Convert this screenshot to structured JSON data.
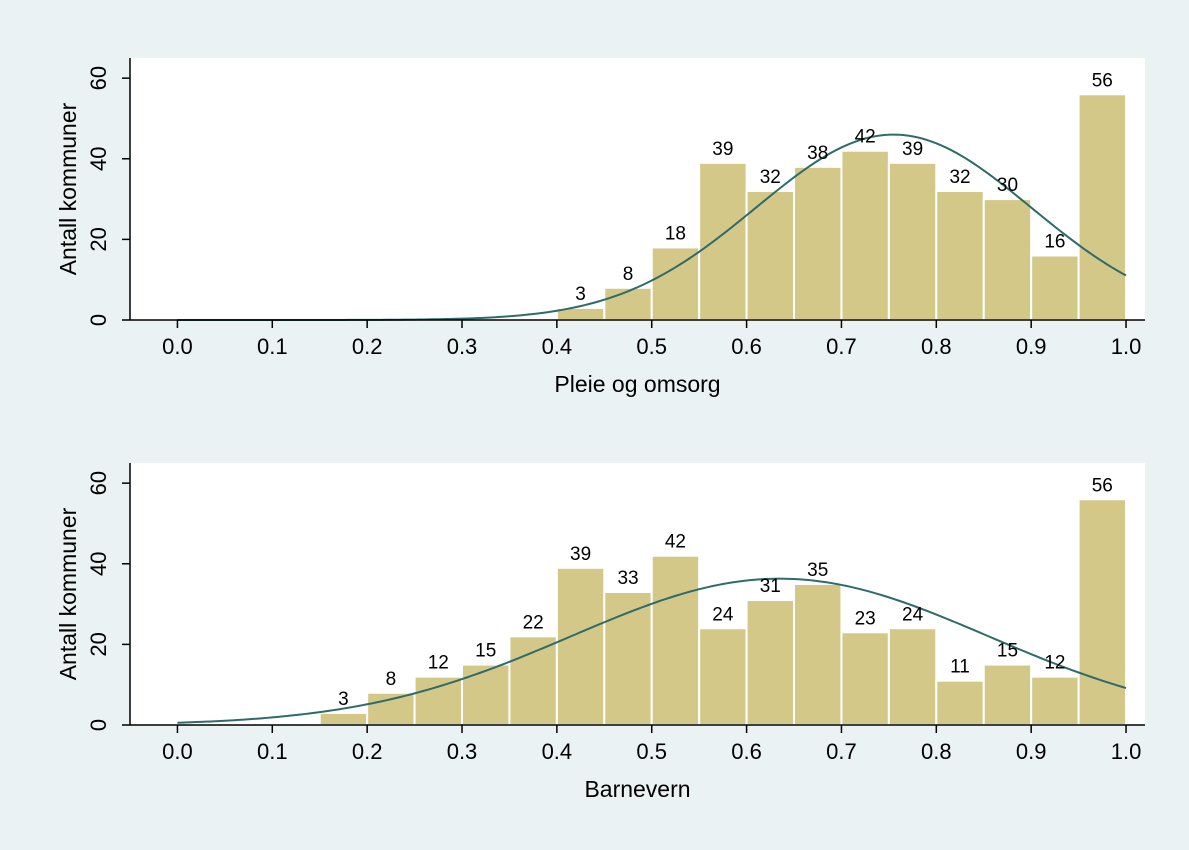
{
  "colors": {
    "outer_background": "#eaf2f3",
    "plot_background": "#ffffff",
    "bar_fill": "#d4c888",
    "bar_stroke": "#ffffff",
    "curve": "#2e6b6b",
    "axis": "#000000"
  },
  "chart_data": [
    {
      "type": "bar",
      "title": "",
      "xlabel": "Pleie og omsorg",
      "ylabel": "Antall kommuner",
      "xlim": [
        -0.05,
        1.02
      ],
      "ylim": [
        0,
        65
      ],
      "xticks": [
        0.0,
        0.1,
        0.2,
        0.3,
        0.4,
        0.5,
        0.6,
        0.7,
        0.8,
        0.9,
        1.0
      ],
      "xtick_labels": [
        "0.0",
        "0.1",
        "0.2",
        "0.3",
        "0.4",
        "0.5",
        "0.6",
        "0.7",
        "0.8",
        "0.9",
        "1.0"
      ],
      "yticks": [
        0,
        20,
        40,
        60
      ],
      "ytick_labels": [
        "0",
        "20",
        "40",
        "60"
      ],
      "grid": false,
      "bin_edges": [
        0.4,
        0.45,
        0.5,
        0.55,
        0.6,
        0.65,
        0.7,
        0.75,
        0.8,
        0.85,
        0.9,
        0.95,
        1.0
      ],
      "values": [
        3,
        8,
        18,
        39,
        32,
        38,
        42,
        39,
        32,
        30,
        16,
        56
      ],
      "value_labels": [
        "3",
        "8",
        "18",
        "39",
        "32",
        "38",
        "42",
        "39",
        "32",
        "30",
        "16",
        "56"
      ],
      "normal_curve": {
        "mean": 0.755,
        "sd": 0.145,
        "peak": 46,
        "x_range": [
          0,
          1
        ]
      }
    },
    {
      "type": "bar",
      "title": "",
      "xlabel": "Barnevern",
      "ylabel": "Antall kommuner",
      "xlim": [
        -0.05,
        1.02
      ],
      "ylim": [
        0,
        65
      ],
      "xticks": [
        0.0,
        0.1,
        0.2,
        0.3,
        0.4,
        0.5,
        0.6,
        0.7,
        0.8,
        0.9,
        1.0
      ],
      "xtick_labels": [
        "0.0",
        "0.1",
        "0.2",
        "0.3",
        "0.4",
        "0.5",
        "0.6",
        "0.7",
        "0.8",
        "0.9",
        "1.0"
      ],
      "yticks": [
        0,
        20,
        40,
        60
      ],
      "ytick_labels": [
        "0",
        "20",
        "40",
        "60"
      ],
      "grid": false,
      "bin_edges": [
        0.15,
        0.2,
        0.25,
        0.3,
        0.35,
        0.4,
        0.45,
        0.5,
        0.55,
        0.6,
        0.65,
        0.7,
        0.75,
        0.8,
        0.85,
        0.9,
        0.95,
        1.0
      ],
      "values": [
        3,
        8,
        12,
        15,
        22,
        39,
        33,
        42,
        24,
        31,
        35,
        23,
        24,
        11,
        15,
        12,
        56
      ],
      "value_labels": [
        "3",
        "8",
        "12",
        "15",
        "22",
        "39",
        "33",
        "42",
        "24",
        "31",
        "35",
        "23",
        "24",
        "11",
        "15",
        "12",
        "56"
      ],
      "normal_curve": {
        "mean": 0.635,
        "sd": 0.22,
        "peak": 36.3,
        "x_range": [
          0,
          1
        ]
      }
    }
  ]
}
